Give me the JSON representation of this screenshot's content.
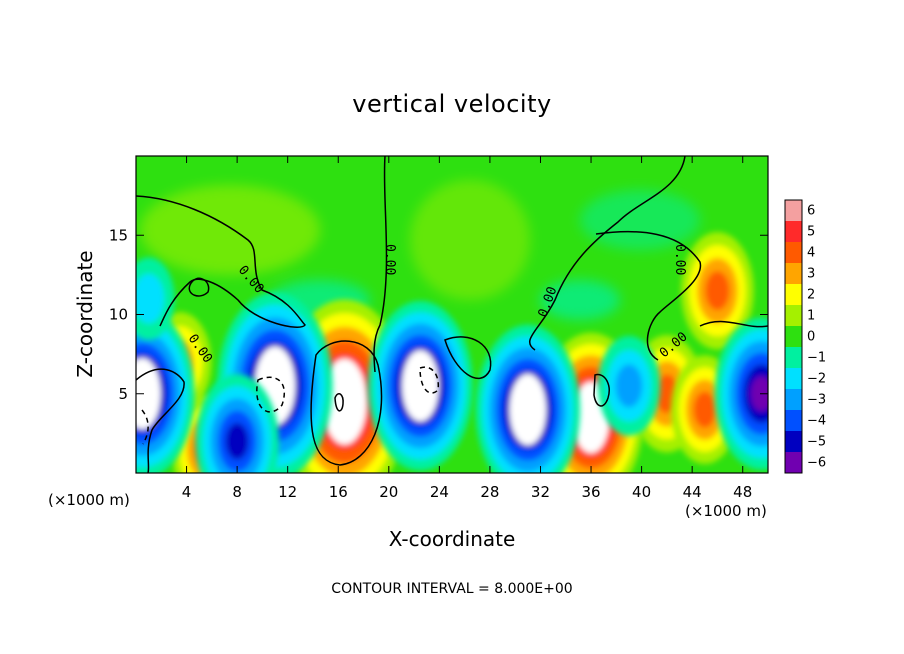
{
  "chart_data": {
    "type": "heatmap",
    "title": "vertical velocity",
    "xlabel": "X-coordinate",
    "ylabel": "Z-coordinate",
    "x_unit_left": "(×1000 m)",
    "x_unit_right": "(×1000 m)",
    "xlim": [
      0,
      50
    ],
    "ylim": [
      0,
      20
    ],
    "x_ticks": [
      4,
      8,
      12,
      16,
      20,
      24,
      28,
      32,
      36,
      40,
      44,
      48
    ],
    "y_ticks": [
      5,
      10,
      15
    ],
    "colorbar": {
      "levels": [
        6,
        5,
        4,
        3,
        2,
        1,
        0,
        -1,
        -2,
        -3,
        -4,
        -5,
        -6
      ],
      "colors": [
        "#f4a0a0",
        "#ff2a2a",
        "#ff5a00",
        "#ffa500",
        "#ffff00",
        "#a5f000",
        "#2ee010",
        "#00f0a0",
        "#00e0ff",
        "#00a0ff",
        "#0050ff",
        "#0000c0",
        "#7000b0"
      ]
    },
    "contour_labels": [
      "0.00",
      "0.00",
      "0.00",
      "0.00",
      "0.00",
      "0.00"
    ],
    "contour_interval_text": "CONTOUR INTERVAL = 8.000E+00",
    "features": [
      {
        "x": 16.5,
        "z": 4.5,
        "w": 9,
        "kind": "updraft"
      },
      {
        "x": 36,
        "z": 3.5,
        "w": 7,
        "kind": "updraft"
      },
      {
        "x": 42,
        "z": 5,
        "w": 4,
        "kind": "updraft"
      },
      {
        "x": 46,
        "z": 11.5,
        "w": 4,
        "kind": "updraft"
      },
      {
        "x": 45,
        "z": 4,
        "w": 3.5,
        "kind": "updraft"
      },
      {
        "x": 5.5,
        "z": 1.5,
        "w": 3.5,
        "kind": "updraft"
      },
      {
        "x": 3.5,
        "z": 7,
        "w": 3,
        "kind": "updraft"
      },
      {
        "x": 11,
        "z": 5.5,
        "w": -8,
        "kind": "downdraft"
      },
      {
        "x": 22.5,
        "z": 5.5,
        "w": -7,
        "kind": "downdraft"
      },
      {
        "x": 31,
        "z": 4,
        "w": -7,
        "kind": "downdraft"
      },
      {
        "x": 0.5,
        "z": 5,
        "w": -7,
        "kind": "downdraft"
      },
      {
        "x": 8,
        "z": 2,
        "w": -5,
        "kind": "downdraft"
      },
      {
        "x": 49.5,
        "z": 5,
        "w": -6,
        "kind": "downdraft"
      },
      {
        "x": 39,
        "z": 5.5,
        "w": -3,
        "kind": "downdraft"
      },
      {
        "x": 1,
        "z": 11,
        "w": -2,
        "kind": "downdraft"
      }
    ]
  }
}
